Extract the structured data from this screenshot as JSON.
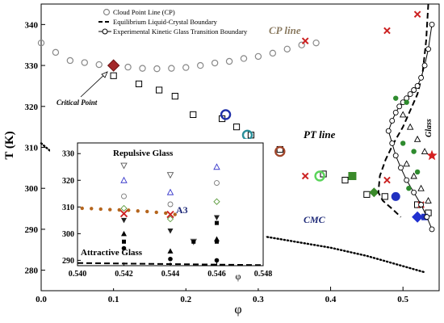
{
  "chart_data": [
    {
      "type": "scatter",
      "xlabel": "φ",
      "ylabel": "T (K)",
      "xlim": [
        0.0,
        0.55
      ],
      "ylim": [
        275,
        345
      ],
      "xticks": [
        "0.0",
        "0.1",
        "0.2",
        "0.3",
        "0.4",
        "0.5"
      ],
      "yticks": [
        "280",
        "290",
        "300",
        "310",
        "320",
        "330",
        "340"
      ],
      "legend_position": "top-left",
      "legend": [
        "Cloud Point Line (CP)",
        "Equilibrium Liquid-Crystal Boundary",
        "Experimental Kinetic Glass Transition Boundary"
      ],
      "annotations": {
        "cp_line": "CP line",
        "pt_line": "PT line",
        "cmc": "CMC",
        "critical_point": "Critical Point",
        "glass": "Glass"
      },
      "series": [
        {
          "name": "Cloud Point Line (CP)",
          "marker": "open-circle",
          "color": "#888888",
          "x": [
            0.0,
            0.02,
            0.04,
            0.06,
            0.08,
            0.1,
            0.12,
            0.14,
            0.16,
            0.18,
            0.2,
            0.22,
            0.24,
            0.26,
            0.28,
            0.3,
            0.32,
            0.34,
            0.36,
            0.38
          ],
          "y": [
            335.5,
            333.2,
            331.2,
            330.7,
            330.2,
            330.0,
            329.6,
            329.3,
            329.2,
            329.3,
            329.5,
            330.0,
            330.6,
            331.0,
            331.7,
            332.2,
            333.0,
            334.0,
            335.0,
            335.5
          ]
        },
        {
          "name": "",
          "marker": "open-square",
          "color": "#000000",
          "x": [
            0.1,
            0.135,
            0.163,
            0.185,
            0.21,
            0.25,
            0.27,
            0.29,
            0.3,
            0.33,
            0.39,
            0.42,
            0.45,
            0.475,
            0.52,
            0.535
          ],
          "y": [
            327.5,
            325.5,
            324.0,
            322.5,
            318.0,
            317.0,
            315.0,
            313.0,
            310.5,
            309.5,
            303.5,
            302.0,
            298.5,
            298.0,
            296.0,
            294.0
          ]
        },
        {
          "name": "",
          "marker": "x",
          "color": "#cc2222",
          "x": [
            0.365,
            0.365,
            0.478,
            0.478,
            0.52,
            0.525
          ],
          "y": [
            336.0,
            303.0,
            338.5,
            302.0,
            342.5,
            296.0
          ]
        },
        {
          "name": "",
          "marker": "pt-points",
          "color": "#2e7d1f",
          "x": [
            0.255,
            0.285,
            0.33,
            0.385,
            0.43,
            0.46,
            0.49,
            0.52,
            0.53,
            0.54
          ],
          "y": [
            318.0,
            313.0,
            309.0,
            303.0,
            303.0,
            299.0,
            298.0,
            293.0,
            293.0,
            308.0
          ]
        },
        {
          "name": "Equilibrium Liquid-Crystal Boundary",
          "marker": "dash",
          "color": "#000000",
          "x": [
            0.535,
            0.532,
            0.527,
            0.52,
            0.51,
            0.5,
            0.487,
            0.476,
            0.468,
            0.466,
            0.472,
            0.485,
            0.497
          ],
          "y": [
            345.0,
            336.0,
            328.0,
            323.0,
            319.0,
            315.0,
            311.0,
            307.0,
            303.0,
            299.0,
            297.0,
            295.0,
            293.0
          ]
        },
        {
          "name": "",
          "marker": "dot",
          "color": "#000000",
          "x": [
            0.0,
            0.02,
            0.04,
            0.06,
            0.08,
            0.1,
            0.15,
            0.2,
            0.25,
            0.3,
            0.35,
            0.4,
            0.45,
            0.5,
            0.53
          ],
          "y": [
            311.0,
            308.0,
            305.0,
            302.0,
            299.0,
            297.0,
            294.0,
            291.5,
            290.0,
            288.5,
            287.0,
            285.5,
            283.5,
            281.0,
            279.5
          ]
        }
      ]
    },
    {
      "type": "scatter",
      "title": "",
      "xlabel": "φ",
      "xlim": [
        0.54,
        0.548
      ],
      "ylim": [
        288,
        334
      ],
      "xticks": [
        "0.540",
        "0.542",
        "0.544",
        "0.546",
        "0.548"
      ],
      "yticks": [
        "290",
        "300",
        "310",
        "320",
        "330"
      ],
      "annotations": {
        "repulsive": "Repulsive Glass",
        "attractive": "Attractive Glass",
        "a3": "A3"
      },
      "series": [
        {
          "name": "",
          "marker": "dot-line",
          "color": "#b5651d",
          "x": [
            0.5402,
            0.5406,
            0.541,
            0.5414,
            0.5418,
            0.5422,
            0.5426,
            0.543,
            0.5434,
            0.5438,
            0.5442
          ],
          "y": [
            309.5,
            309.4,
            309.2,
            309.0,
            308.9,
            308.8,
            308.5,
            308.3,
            308.0,
            307.7,
            307.2
          ]
        },
        {
          "name": "",
          "marker": "dash",
          "color": "#000000",
          "x": [
            0.54,
            0.541,
            0.542,
            0.543,
            0.544,
            0.545,
            0.546,
            0.547,
            0.548
          ],
          "y": [
            289.0,
            288.9,
            288.8,
            288.7,
            288.6,
            288.5,
            288.4,
            288.3,
            288.2
          ]
        },
        {
          "name": "",
          "marker": "mixed",
          "color": "#000000",
          "x": [
            0.542,
            0.542,
            0.542,
            0.542,
            0.542,
            0.542,
            0.542,
            0.544,
            0.544,
            0.544,
            0.544,
            0.544,
            0.544,
            0.544,
            0.545,
            0.546,
            0.546,
            0.546,
            0.546,
            0.546,
            0.546
          ],
          "y": [
            325.5,
            320.0,
            314.0,
            309.5,
            305.0,
            300.0,
            294.5,
            322.0,
            315.5,
            311.0,
            305.5,
            301.0,
            293.5,
            290.5,
            297.0,
            325.0,
            319.0,
            312.0,
            306.0,
            298.0,
            290.0
          ]
        }
      ]
    }
  ]
}
